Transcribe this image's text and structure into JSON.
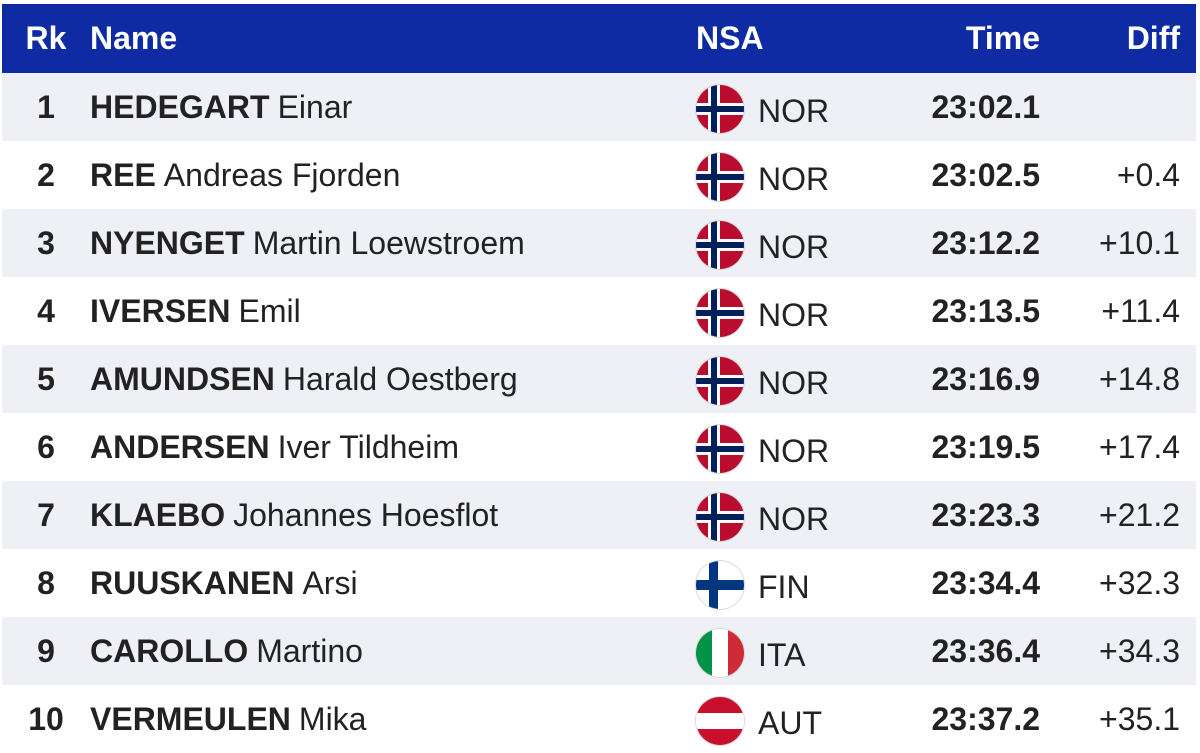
{
  "header": {
    "rank": "Rk",
    "name": "Name",
    "nsa": "NSA",
    "time": "Time",
    "diff": "Diff"
  },
  "rows": [
    {
      "rank": "1",
      "last": "HEDEGART",
      "first": "Einar",
      "nsa": "NOR",
      "flag": "norway-flag-icon",
      "time": "23:02.1",
      "diff": ""
    },
    {
      "rank": "2",
      "last": "REE",
      "first": "Andreas Fjorden",
      "nsa": "NOR",
      "flag": "norway-flag-icon",
      "time": "23:02.5",
      "diff": "+0.4"
    },
    {
      "rank": "3",
      "last": "NYENGET",
      "first": "Martin Loewstroem",
      "nsa": "NOR",
      "flag": "norway-flag-icon",
      "time": "23:12.2",
      "diff": "+10.1"
    },
    {
      "rank": "4",
      "last": "IVERSEN",
      "first": "Emil",
      "nsa": "NOR",
      "flag": "norway-flag-icon",
      "time": "23:13.5",
      "diff": "+11.4"
    },
    {
      "rank": "5",
      "last": "AMUNDSEN",
      "first": "Harald Oestberg",
      "nsa": "NOR",
      "flag": "norway-flag-icon",
      "time": "23:16.9",
      "diff": "+14.8"
    },
    {
      "rank": "6",
      "last": "ANDERSEN",
      "first": "Iver Tildheim",
      "nsa": "NOR",
      "flag": "norway-flag-icon",
      "time": "23:19.5",
      "diff": "+17.4"
    },
    {
      "rank": "7",
      "last": "KLAEBO",
      "first": "Johannes Hoesflot",
      "nsa": "NOR",
      "flag": "norway-flag-icon",
      "time": "23:23.3",
      "diff": "+21.2"
    },
    {
      "rank": "8",
      "last": "RUUSKANEN",
      "first": "Arsi",
      "nsa": "FIN",
      "flag": "finland-flag-icon",
      "time": "23:34.4",
      "diff": "+32.3"
    },
    {
      "rank": "9",
      "last": "CAROLLO",
      "first": "Martino",
      "nsa": "ITA",
      "flag": "italy-flag-icon",
      "time": "23:36.4",
      "diff": "+34.3"
    },
    {
      "rank": "10",
      "last": "VERMEULEN",
      "first": "Mika",
      "nsa": "AUT",
      "flag": "austria-flag-icon",
      "time": "23:37.2",
      "diff": "+35.1"
    }
  ],
  "colors": {
    "header_bg": "#0f2ba3",
    "row_alt_bg": "#eef0f6",
    "norway_red": "#ba0c2f",
    "norway_blue": "#00205b",
    "finland_blue": "#003580",
    "italy_green": "#009246",
    "italy_red": "#ce2b37",
    "austria_red": "#c8102e"
  }
}
